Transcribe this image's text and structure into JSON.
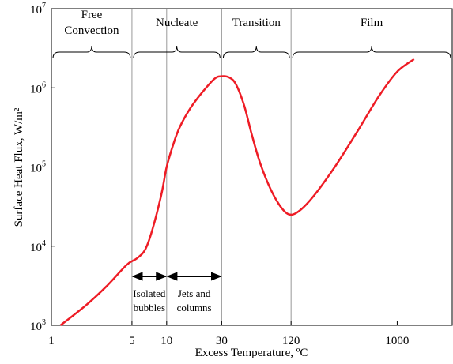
{
  "chart_data": {
    "type": "line",
    "title": "",
    "xlabel": "Excess Temperature, ºC",
    "ylabel": "Surface Heat Flux, W/m²",
    "x_scale": "log",
    "y_scale": "log",
    "xlim": [
      1,
      3000
    ],
    "ylim": [
      1000,
      10000000
    ],
    "grid": false,
    "x_ticks": [
      {
        "value": 1,
        "label": "1"
      },
      {
        "value": 5,
        "label": "5"
      },
      {
        "value": 10,
        "label": "10"
      },
      {
        "value": 30,
        "label": "30"
      },
      {
        "value": 120,
        "label": "120"
      },
      {
        "value": 1000,
        "label": "1000"
      }
    ],
    "y_ticks": [
      {
        "value": 1000,
        "base": "10",
        "exp": "3"
      },
      {
        "value": 10000,
        "base": "10",
        "exp": "4"
      },
      {
        "value": 100000,
        "base": "10",
        "exp": "5"
      },
      {
        "value": 1000000,
        "base": "10",
        "exp": "6"
      },
      {
        "value": 10000000,
        "base": "10",
        "exp": "7"
      }
    ],
    "regions": [
      {
        "label_lines": [
          "Free",
          "Convection"
        ],
        "from": 1,
        "to": 5
      },
      {
        "label_lines": [
          "Nucleate"
        ],
        "from": 5,
        "to": 30
      },
      {
        "label_lines": [
          "Transition"
        ],
        "from": 30,
        "to": 120
      },
      {
        "label_lines": [
          "Film"
        ],
        "from": 120,
        "to": 3000
      }
    ],
    "boundaries": [
      5,
      10,
      30,
      120
    ],
    "sub_regions": [
      {
        "label_lines": [
          "Isolated",
          "bubbles"
        ],
        "from": 5,
        "to": 10
      },
      {
        "label_lines": [
          "Jets and",
          "columns"
        ],
        "from": 10,
        "to": 30
      }
    ],
    "series": [
      {
        "color": "#ee1c25",
        "points": [
          [
            1.2,
            1000
          ],
          [
            2,
            1800
          ],
          [
            3,
            3100
          ],
          [
            4.5,
            5800
          ],
          [
            5.5,
            7000
          ],
          [
            6.5,
            9000
          ],
          [
            7.5,
            16000
          ],
          [
            9,
            45000
          ],
          [
            10,
            100000
          ],
          [
            11.5,
            200000
          ],
          [
            13,
            320000
          ],
          [
            16,
            550000
          ],
          [
            20,
            850000
          ],
          [
            26,
            1300000
          ],
          [
            30,
            1400000
          ],
          [
            35,
            1350000
          ],
          [
            40,
            1100000
          ],
          [
            47,
            600000
          ],
          [
            55,
            250000
          ],
          [
            65,
            110000
          ],
          [
            80,
            52000
          ],
          [
            100,
            30000
          ],
          [
            120,
            25000
          ],
          [
            150,
            30000
          ],
          [
            200,
            48000
          ],
          [
            300,
            110000
          ],
          [
            450,
            280000
          ],
          [
            700,
            800000
          ],
          [
            1000,
            1600000
          ],
          [
            1400,
            2300000
          ]
        ]
      }
    ]
  }
}
